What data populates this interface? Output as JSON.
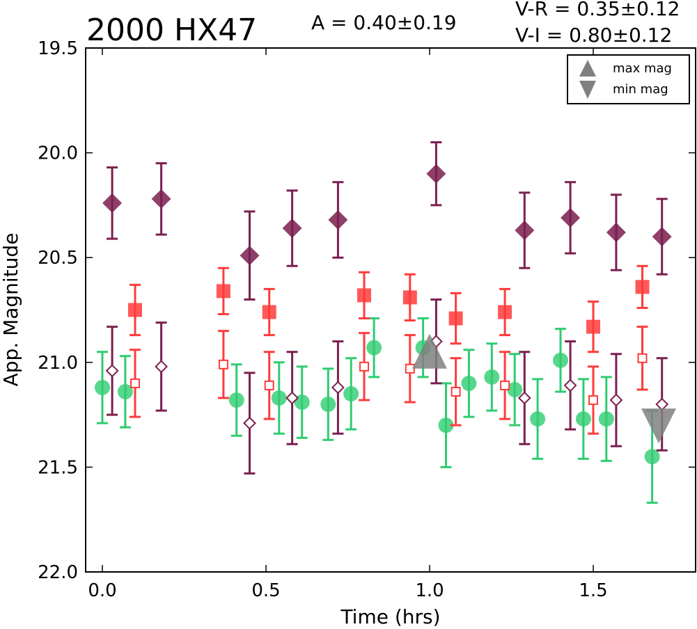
{
  "header": {
    "title": "2000 HX47",
    "amplitude": "A  = 0.40±0.19",
    "color_vr": "V-R = 0.35±0.12",
    "color_vi": "V-I  = 0.80±0.12"
  },
  "legend": {
    "max_label": "max mag",
    "min_label": "min mag"
  },
  "chart_data": {
    "type": "scatter",
    "title": "2000 HX47",
    "xlabel": "Time (hrs)",
    "ylabel": "App. Magnitude",
    "xlim": [
      -0.05,
      1.82
    ],
    "ylim": [
      22.0,
      19.5
    ],
    "y_inverted": true,
    "x_ticks": [
      "0.0",
      "0.5",
      "1.0",
      "1.5"
    ],
    "x_tick_values": [
      0.0,
      0.5,
      1.0,
      1.5
    ],
    "y_ticks": [
      "19.5",
      "20.0",
      "20.5",
      "21.0",
      "21.5",
      "22.0"
    ],
    "y_tick_values": [
      19.5,
      20.0,
      20.5,
      21.0,
      21.5,
      22.0
    ],
    "grid": false,
    "legend_position": "top-right",
    "colors": {
      "green": "#2ecc71",
      "red": "#ff3b3b",
      "purple": "#7a1f4f",
      "marker_gray": "#808080"
    },
    "series": [
      {
        "marker": "circle-filled",
        "color": "#2ecc71",
        "points": [
          {
            "x": 0.0,
            "y": 21.12,
            "err": 0.17
          },
          {
            "x": 0.07,
            "y": 21.14,
            "err": 0.17
          },
          {
            "x": 0.41,
            "y": 21.18,
            "err": 0.17
          },
          {
            "x": 0.54,
            "y": 21.17,
            "err": 0.17
          },
          {
            "x": 0.61,
            "y": 21.19,
            "err": 0.17
          },
          {
            "x": 0.69,
            "y": 21.2,
            "err": 0.17
          },
          {
            "x": 0.76,
            "y": 21.15,
            "err": 0.17
          },
          {
            "x": 0.83,
            "y": 20.93,
            "err": 0.14
          },
          {
            "x": 0.98,
            "y": 20.93,
            "err": 0.14
          },
          {
            "x": 1.05,
            "y": 21.3,
            "err": 0.2
          },
          {
            "x": 1.12,
            "y": 21.1,
            "err": 0.16
          },
          {
            "x": 1.19,
            "y": 21.07,
            "err": 0.16
          },
          {
            "x": 1.26,
            "y": 21.13,
            "err": 0.17
          },
          {
            "x": 1.33,
            "y": 21.27,
            "err": 0.19
          },
          {
            "x": 1.4,
            "y": 20.99,
            "err": 0.15
          },
          {
            "x": 1.47,
            "y": 21.27,
            "err": 0.19
          },
          {
            "x": 1.54,
            "y": 21.27,
            "err": 0.2
          },
          {
            "x": 1.68,
            "y": 21.45,
            "err": 0.22
          }
        ]
      },
      {
        "marker": "square-filled",
        "color": "#ff3b3b",
        "points": [
          {
            "x": 0.1,
            "y": 20.75,
            "err": 0.12
          },
          {
            "x": 0.37,
            "y": 20.66,
            "err": 0.11
          },
          {
            "x": 0.51,
            "y": 20.76,
            "err": 0.11
          },
          {
            "x": 0.8,
            "y": 20.68,
            "err": 0.11
          },
          {
            "x": 0.94,
            "y": 20.69,
            "err": 0.11
          },
          {
            "x": 1.08,
            "y": 20.79,
            "err": 0.12
          },
          {
            "x": 1.23,
            "y": 20.76,
            "err": 0.11
          },
          {
            "x": 1.5,
            "y": 20.83,
            "err": 0.12
          },
          {
            "x": 1.65,
            "y": 20.64,
            "err": 0.1
          }
        ]
      },
      {
        "marker": "square-open",
        "color": "#ff3b3b",
        "points": [
          {
            "x": 0.1,
            "y": 21.1,
            "err": 0.16
          },
          {
            "x": 0.37,
            "y": 21.01,
            "err": 0.16
          },
          {
            "x": 0.51,
            "y": 21.11,
            "err": 0.16
          },
          {
            "x": 0.8,
            "y": 21.02,
            "err": 0.16
          },
          {
            "x": 0.94,
            "y": 21.03,
            "err": 0.16
          },
          {
            "x": 1.08,
            "y": 21.14,
            "err": 0.16
          },
          {
            "x": 1.23,
            "y": 21.11,
            "err": 0.16
          },
          {
            "x": 1.5,
            "y": 21.18,
            "err": 0.16
          },
          {
            "x": 1.65,
            "y": 20.98,
            "err": 0.15
          }
        ]
      },
      {
        "marker": "diamond-filled",
        "color": "#7a1f4f",
        "points": [
          {
            "x": 0.03,
            "y": 20.24,
            "err": 0.17
          },
          {
            "x": 0.18,
            "y": 20.22,
            "err": 0.17
          },
          {
            "x": 0.45,
            "y": 20.49,
            "err": 0.21
          },
          {
            "x": 0.58,
            "y": 20.36,
            "err": 0.18
          },
          {
            "x": 0.72,
            "y": 20.32,
            "err": 0.18
          },
          {
            "x": 1.02,
            "y": 20.1,
            "err": 0.15
          },
          {
            "x": 1.29,
            "y": 20.37,
            "err": 0.18
          },
          {
            "x": 1.43,
            "y": 20.31,
            "err": 0.17
          },
          {
            "x": 1.57,
            "y": 20.38,
            "err": 0.18
          },
          {
            "x": 1.71,
            "y": 20.4,
            "err": 0.18
          }
        ]
      },
      {
        "marker": "diamond-open",
        "color": "#7a1f4f",
        "points": [
          {
            "x": 0.03,
            "y": 21.04,
            "err": 0.21
          },
          {
            "x": 0.18,
            "y": 21.02,
            "err": 0.21
          },
          {
            "x": 0.45,
            "y": 21.29,
            "err": 0.24
          },
          {
            "x": 0.58,
            "y": 21.17,
            "err": 0.22
          },
          {
            "x": 0.72,
            "y": 21.12,
            "err": 0.22
          },
          {
            "x": 1.02,
            "y": 20.9,
            "err": 0.2
          },
          {
            "x": 1.29,
            "y": 21.17,
            "err": 0.22
          },
          {
            "x": 1.43,
            "y": 21.11,
            "err": 0.21
          },
          {
            "x": 1.57,
            "y": 21.18,
            "err": 0.22
          },
          {
            "x": 1.71,
            "y": 21.2,
            "err": 0.22
          }
        ]
      }
    ],
    "extrema": {
      "max": {
        "x": 1.0,
        "y": 20.95
      },
      "min": {
        "x": 1.7,
        "y": 21.3
      }
    }
  }
}
